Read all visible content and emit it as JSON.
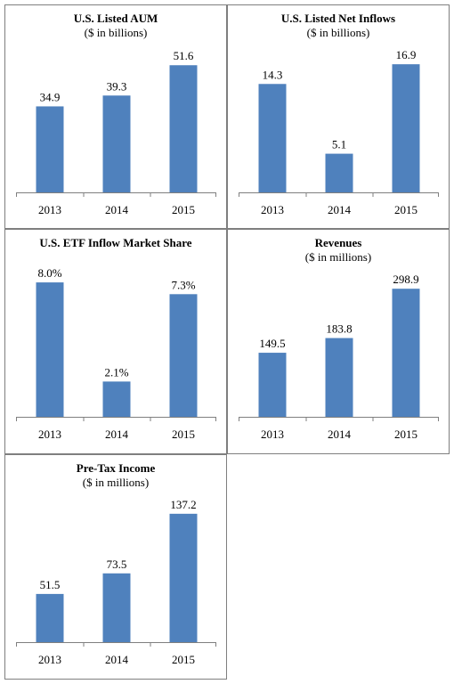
{
  "chart_data": [
    {
      "type": "bar",
      "title": "U.S. Listed AUM",
      "subtitle": "($ in billions)",
      "categories": [
        "2013",
        "2014",
        "2015"
      ],
      "values": [
        34.9,
        39.3,
        51.6
      ],
      "labels": [
        "34.9",
        "39.3",
        "51.6"
      ],
      "ylim": [
        0,
        60
      ],
      "bar_color": "#4f81bd",
      "grid": false,
      "legend": "none"
    },
    {
      "type": "bar",
      "title": "U.S. Listed Net Inflows",
      "subtitle": "($ in billions)",
      "categories": [
        "2013",
        "2014",
        "2015"
      ],
      "values": [
        14.3,
        5.1,
        16.9
      ],
      "labels": [
        "14.3",
        "5.1",
        "16.9"
      ],
      "ylim": [
        0,
        19.5
      ],
      "bar_color": "#4f81bd",
      "grid": false,
      "legend": "none"
    },
    {
      "type": "bar",
      "title": "U.S. ETF Inflow Market Share",
      "subtitle": "",
      "categories": [
        "2013",
        "2014",
        "2015"
      ],
      "values": [
        8.0,
        2.1,
        7.3
      ],
      "labels": [
        "8.0%",
        "2.1%",
        "7.3%"
      ],
      "ylim": [
        0,
        8.8
      ],
      "bar_color": "#4f81bd",
      "grid": false,
      "legend": "none"
    },
    {
      "type": "bar",
      "title": "Revenues",
      "subtitle": "($ in millions)",
      "categories": [
        "2013",
        "2014",
        "2015"
      ],
      "values": [
        149.5,
        183.8,
        298.9
      ],
      "labels": [
        "149.5",
        "183.8",
        "298.9"
      ],
      "ylim": [
        0,
        345
      ],
      "bar_color": "#4f81bd",
      "grid": false,
      "legend": "none"
    },
    {
      "type": "bar",
      "title": "Pre-Tax Income",
      "subtitle": "($ in millions)",
      "categories": [
        "2013",
        "2014",
        "2015"
      ],
      "values": [
        51.5,
        73.5,
        137.2
      ],
      "labels": [
        "51.5",
        "73.5",
        "137.2"
      ],
      "ylim": [
        0,
        158
      ],
      "bar_color": "#4f81bd",
      "grid": false,
      "legend": "none"
    }
  ]
}
